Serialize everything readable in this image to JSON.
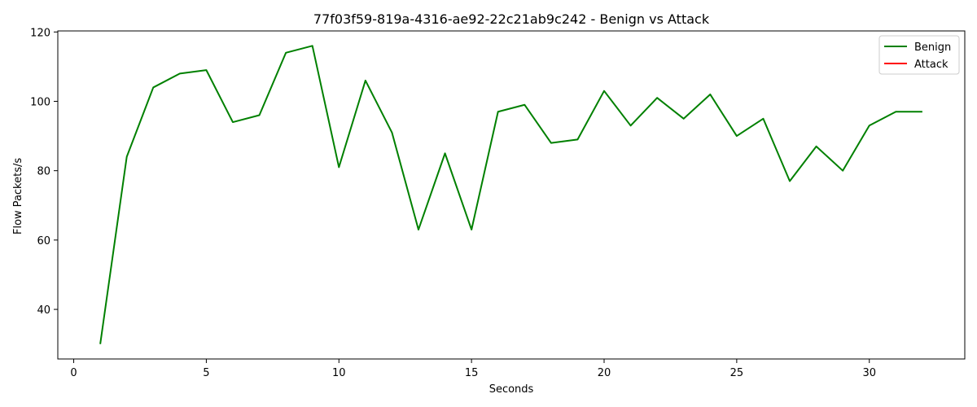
{
  "chart_data": {
    "type": "line",
    "title": "77f03f59-819a-4316-ae92-22c21ab9c242 - Benign vs Attack",
    "xlabel": "Seconds",
    "ylabel": "Flow Packets/s",
    "xlim": [
      -0.6,
      33.6
    ],
    "ylim": [
      25.7,
      120.3
    ],
    "xticks": [
      0,
      5,
      10,
      15,
      20,
      25,
      30
    ],
    "yticks": [
      40,
      60,
      80,
      100,
      120
    ],
    "grid": false,
    "legend_position": "top-right",
    "series": [
      {
        "name": "Benign",
        "color": "#008000",
        "x": [
          1,
          2,
          3,
          4,
          5,
          6,
          7,
          8,
          9,
          10,
          11,
          12,
          13,
          14,
          15,
          16,
          17,
          18,
          19,
          20,
          21,
          22,
          23,
          24,
          25,
          26,
          27,
          28,
          29,
          30,
          31,
          32
        ],
        "y": [
          30,
          84,
          104,
          108,
          109,
          94,
          96,
          114,
          116,
          81,
          106,
          91,
          63,
          85,
          63,
          97,
          99,
          88,
          89,
          103,
          93,
          101,
          95,
          102,
          90,
          95,
          77,
          87,
          80,
          93,
          97,
          97
        ]
      },
      {
        "name": "Attack",
        "color": "#ff0000",
        "x": [],
        "y": []
      }
    ]
  }
}
